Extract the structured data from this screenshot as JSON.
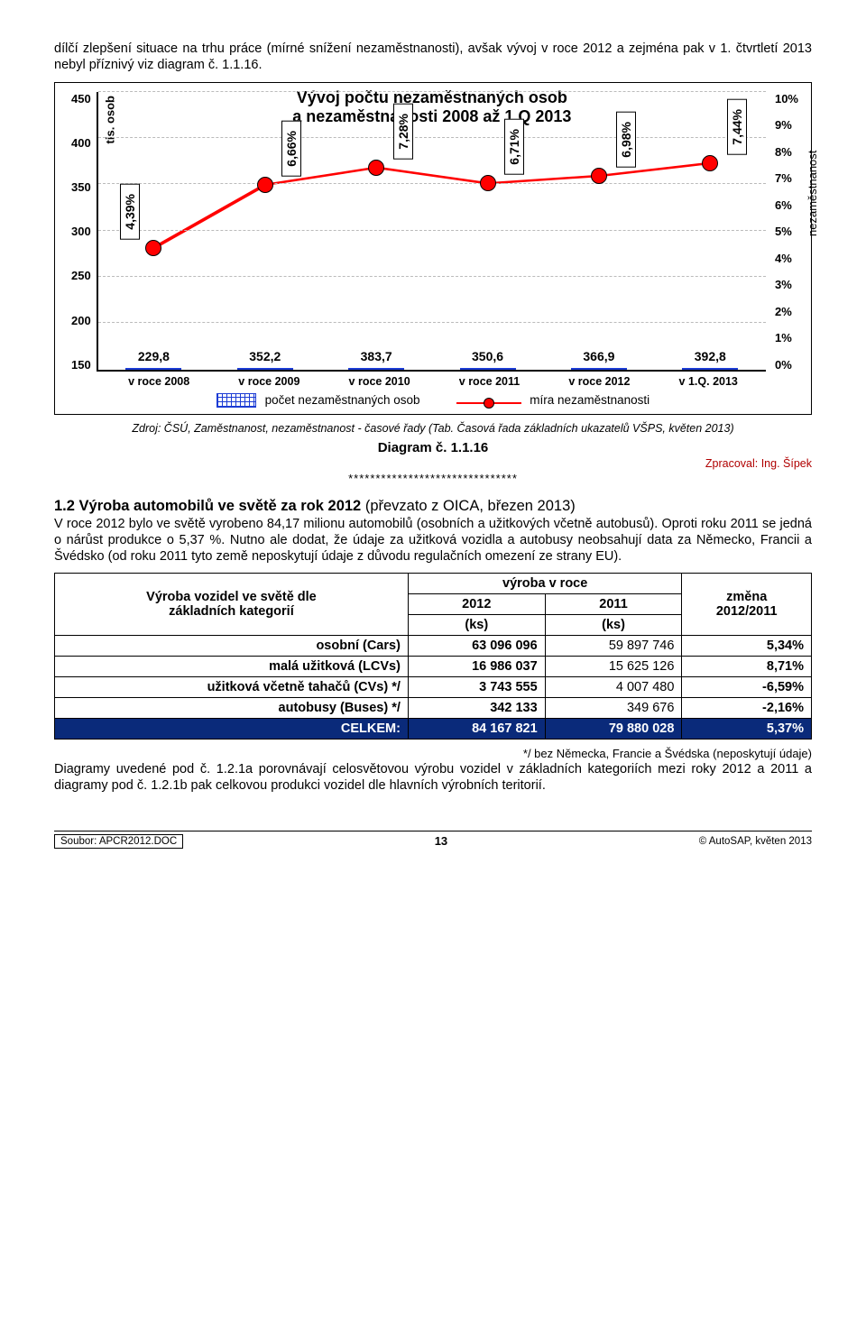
{
  "intro": "dílčí zlepšení situace na trhu práce (mírné snížení nezaměstnanosti), avšak vývoj v roce 2012 a zejména pak v 1. čtvrtletí 2013 nebyl příznivý viz diagram č. 1.1.16.",
  "chart": {
    "type": "bar-line-combo",
    "title_line1": "Vývoj počtu nezaměstnaných osob",
    "title_line2": "a nezaměstnanosti 2008 až 1.Q 2013",
    "y_axis_label": "tis. osob",
    "y_min": 150,
    "y_max": 450,
    "y_step": 50,
    "ry_axis_label": "nezaměstnanost",
    "ry_min": 0,
    "ry_max": 10,
    "ry_step": 1,
    "categories": [
      "v roce 2008",
      "v roce 2009",
      "v roce 2010",
      "v roce 2011",
      "v roce 2012",
      "v 1.Q. 2013"
    ],
    "bar_values": [
      229.8,
      352.2,
      383.7,
      350.6,
      366.9,
      392.8
    ],
    "bar_labels": [
      "229,8",
      "352,2",
      "383,7",
      "350,6",
      "366,9",
      "392,8"
    ],
    "line_values_pct": [
      4.39,
      6.66,
      7.28,
      6.71,
      6.98,
      7.44
    ],
    "line_labels": [
      "4,39%",
      "6,66%",
      "7,28%",
      "6,71%",
      "6,98%",
      "7,44%"
    ],
    "bar_color": "#1b3bd4",
    "line_color": "#ff0000",
    "legend_bar": "počet nezaměstnaných osob",
    "legend_line": "míra nezaměstnanosti",
    "source": "Zdroj: ČSÚ, Zaměstnanost, nezaměstnanost - časové řady (Tab. Časová řada základních ukazatelů VŠPS, květen 2013)",
    "diagram_no": "Diagram č. 1.1.16",
    "author": "Zpracoval: Ing. Šípek"
  },
  "section": {
    "heading_bold": "1.2 Výroba automobilů ve světě za rok 2012",
    "heading_light": " (převzato z OICA, březen 2013)",
    "p1": "V roce 2012 bylo ve světě vyrobeno 84,17 milionu automobilů (osobních a užitkových včetně autobusů). Oproti roku 2011 se jedná o nárůst produkce o 5,37 %. Nutno ale dodat, že údaje za užitková vozidla a autobusy neobsahují data za Německo, Francii a Švédsko (od roku 2011 tyto země neposkytují údaje z důvodu regulačních omezení ze strany EU).",
    "p2": "Diagramy uvedené pod č. 1.2.1a porovnávají celosvětovou výrobu vozidel v základních kategoriích mezi roky 2012 a 2011 a diagramy pod č. 1.2.1b pak celkovou produkci vozidel dle hlavních výrobních teritorií."
  },
  "table": {
    "head_col1_l1": "Výroba vozidel ve světě dle",
    "head_col1_l2": "základních kategorií",
    "head_supercol": "výroba v roce",
    "head_2012": "2012",
    "head_2011": "2011",
    "head_unit": "(ks)",
    "head_change_l1": "změna",
    "head_change_l2": "2012/2011",
    "rows": [
      {
        "label": "osobní (Cars)",
        "v2012": "63 096 096",
        "v2011": "59 897 746",
        "pct": "5,34%"
      },
      {
        "label": "malá užitková (LCVs)",
        "v2012": "16 986 037",
        "v2011": "15 625 126",
        "pct": "8,71%"
      },
      {
        "label": "užitková včetně tahačů (CVs) */",
        "v2012": "3 743 555",
        "v2011": "4 007 480",
        "pct": "-6,59%"
      },
      {
        "label": "autobusy (Buses) */",
        "v2012": "342 133",
        "v2011": "349 676",
        "pct": "-2,16%"
      }
    ],
    "total": {
      "label": "CELKEM:",
      "v2012": "84 167 821",
      "v2011": "79 880 028",
      "pct": "5,37%"
    },
    "footnote": "*/ bez Německa, Francie a Švédska (neposkytují údaje)"
  },
  "footer": {
    "src": "Soubor: APCR2012.DOC",
    "page": "13",
    "right": "© AutoSAP, květen 2013"
  }
}
